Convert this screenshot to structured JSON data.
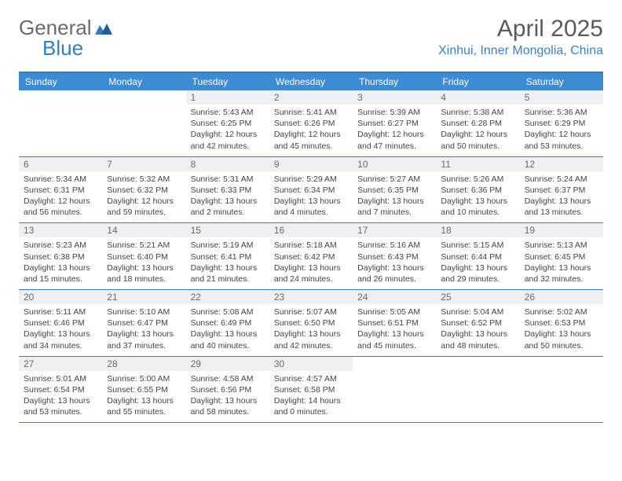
{
  "brand": {
    "part1": "General",
    "part2": "Blue"
  },
  "title": "April 2025",
  "location": "Xinhui, Inner Mongolia, China",
  "colors": {
    "header_bg": "#3d8bd4",
    "header_text": "#ffffff",
    "border": "#2f7fc2",
    "daynum_bg": "#eef0f2",
    "text": "#444444",
    "title_text": "#5a5a5a",
    "loc_text": "#3d82c4"
  },
  "day_names": [
    "Sunday",
    "Monday",
    "Tuesday",
    "Wednesday",
    "Thursday",
    "Friday",
    "Saturday"
  ],
  "weeks": [
    [
      {
        "empty": true
      },
      {
        "empty": true
      },
      {
        "num": "1",
        "sunrise": "5:43 AM",
        "sunset": "6:25 PM",
        "daylight": "12 hours and 42 minutes."
      },
      {
        "num": "2",
        "sunrise": "5:41 AM",
        "sunset": "6:26 PM",
        "daylight": "12 hours and 45 minutes."
      },
      {
        "num": "3",
        "sunrise": "5:39 AM",
        "sunset": "6:27 PM",
        "daylight": "12 hours and 47 minutes."
      },
      {
        "num": "4",
        "sunrise": "5:38 AM",
        "sunset": "6:28 PM",
        "daylight": "12 hours and 50 minutes."
      },
      {
        "num": "5",
        "sunrise": "5:36 AM",
        "sunset": "6:29 PM",
        "daylight": "12 hours and 53 minutes."
      }
    ],
    [
      {
        "num": "6",
        "sunrise": "5:34 AM",
        "sunset": "6:31 PM",
        "daylight": "12 hours and 56 minutes."
      },
      {
        "num": "7",
        "sunrise": "5:32 AM",
        "sunset": "6:32 PM",
        "daylight": "12 hours and 59 minutes."
      },
      {
        "num": "8",
        "sunrise": "5:31 AM",
        "sunset": "6:33 PM",
        "daylight": "13 hours and 2 minutes."
      },
      {
        "num": "9",
        "sunrise": "5:29 AM",
        "sunset": "6:34 PM",
        "daylight": "13 hours and 4 minutes."
      },
      {
        "num": "10",
        "sunrise": "5:27 AM",
        "sunset": "6:35 PM",
        "daylight": "13 hours and 7 minutes."
      },
      {
        "num": "11",
        "sunrise": "5:26 AM",
        "sunset": "6:36 PM",
        "daylight": "13 hours and 10 minutes."
      },
      {
        "num": "12",
        "sunrise": "5:24 AM",
        "sunset": "6:37 PM",
        "daylight": "13 hours and 13 minutes."
      }
    ],
    [
      {
        "num": "13",
        "sunrise": "5:23 AM",
        "sunset": "6:38 PM",
        "daylight": "13 hours and 15 minutes."
      },
      {
        "num": "14",
        "sunrise": "5:21 AM",
        "sunset": "6:40 PM",
        "daylight": "13 hours and 18 minutes."
      },
      {
        "num": "15",
        "sunrise": "5:19 AM",
        "sunset": "6:41 PM",
        "daylight": "13 hours and 21 minutes."
      },
      {
        "num": "16",
        "sunrise": "5:18 AM",
        "sunset": "6:42 PM",
        "daylight": "13 hours and 24 minutes."
      },
      {
        "num": "17",
        "sunrise": "5:16 AM",
        "sunset": "6:43 PM",
        "daylight": "13 hours and 26 minutes."
      },
      {
        "num": "18",
        "sunrise": "5:15 AM",
        "sunset": "6:44 PM",
        "daylight": "13 hours and 29 minutes."
      },
      {
        "num": "19",
        "sunrise": "5:13 AM",
        "sunset": "6:45 PM",
        "daylight": "13 hours and 32 minutes."
      }
    ],
    [
      {
        "num": "20",
        "sunrise": "5:11 AM",
        "sunset": "6:46 PM",
        "daylight": "13 hours and 34 minutes."
      },
      {
        "num": "21",
        "sunrise": "5:10 AM",
        "sunset": "6:47 PM",
        "daylight": "13 hours and 37 minutes."
      },
      {
        "num": "22",
        "sunrise": "5:08 AM",
        "sunset": "6:49 PM",
        "daylight": "13 hours and 40 minutes."
      },
      {
        "num": "23",
        "sunrise": "5:07 AM",
        "sunset": "6:50 PM",
        "daylight": "13 hours and 42 minutes."
      },
      {
        "num": "24",
        "sunrise": "5:05 AM",
        "sunset": "6:51 PM",
        "daylight": "13 hours and 45 minutes."
      },
      {
        "num": "25",
        "sunrise": "5:04 AM",
        "sunset": "6:52 PM",
        "daylight": "13 hours and 48 minutes."
      },
      {
        "num": "26",
        "sunrise": "5:02 AM",
        "sunset": "6:53 PM",
        "daylight": "13 hours and 50 minutes."
      }
    ],
    [
      {
        "num": "27",
        "sunrise": "5:01 AM",
        "sunset": "6:54 PM",
        "daylight": "13 hours and 53 minutes."
      },
      {
        "num": "28",
        "sunrise": "5:00 AM",
        "sunset": "6:55 PM",
        "daylight": "13 hours and 55 minutes."
      },
      {
        "num": "29",
        "sunrise": "4:58 AM",
        "sunset": "6:56 PM",
        "daylight": "13 hours and 58 minutes."
      },
      {
        "num": "30",
        "sunrise": "4:57 AM",
        "sunset": "6:58 PM",
        "daylight": "14 hours and 0 minutes."
      },
      {
        "empty": true
      },
      {
        "empty": true
      },
      {
        "empty": true
      }
    ]
  ]
}
